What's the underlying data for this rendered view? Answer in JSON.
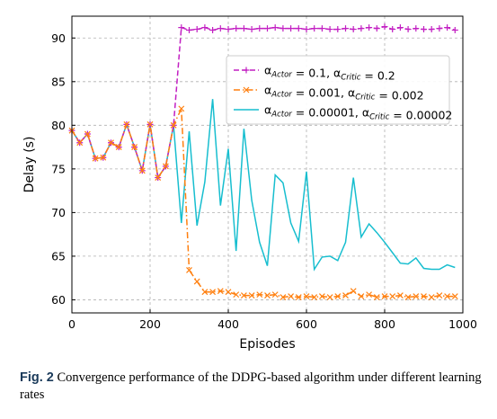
{
  "chart_data": {
    "type": "line",
    "xlabel": "Episodes",
    "ylabel": "Delay (s)",
    "xlim": [
      0,
      1000
    ],
    "ylim": [
      58.5,
      92.5
    ],
    "xticks": [
      0,
      200,
      400,
      600,
      800,
      1000
    ],
    "yticks": [
      60,
      65,
      70,
      75,
      80,
      85,
      90
    ],
    "grid": true,
    "legend_position": "upper-right",
    "series": [
      {
        "key": "s1",
        "color": "#c21fc2",
        "linestyle": "dashed",
        "marker": "plus",
        "legend": {
          "a": "α",
          "sub1": "Actor",
          "mid": " = 0.1, ",
          "sub2": "Critic",
          "end": " = 0.2"
        },
        "x": [
          0,
          20,
          40,
          60,
          80,
          100,
          120,
          140,
          160,
          180,
          200,
          220,
          240,
          260,
          280,
          300,
          320,
          340,
          360,
          380,
          400,
          420,
          440,
          460,
          480,
          500,
          520,
          540,
          560,
          580,
          600,
          620,
          640,
          660,
          680,
          700,
          720,
          740,
          760,
          780,
          800,
          820,
          840,
          860,
          880,
          900,
          920,
          940,
          960,
          980
        ],
        "y": [
          79.4,
          78.0,
          79.0,
          76.2,
          76.3,
          78.0,
          77.5,
          80.1,
          77.5,
          74.8,
          80.1,
          74.0,
          75.3,
          80.0,
          91.2,
          90.9,
          91.0,
          91.2,
          90.9,
          91.1,
          91.0,
          91.1,
          91.1,
          91.0,
          91.1,
          91.1,
          91.2,
          91.1,
          91.1,
          91.1,
          91.0,
          91.1,
          91.1,
          91.0,
          91.0,
          91.1,
          91.0,
          91.1,
          91.2,
          91.1,
          91.3,
          91.0,
          91.2,
          91.0,
          91.1,
          91.0,
          91.0,
          91.1,
          91.2,
          90.9
        ]
      },
      {
        "key": "s2",
        "color": "#ff7f0e",
        "linestyle": "dashdot",
        "marker": "x",
        "legend": {
          "a": "α",
          "sub1": "Actor",
          "mid": " = 0.001, ",
          "sub2": "Critic",
          "end": " = 0.002"
        },
        "x": [
          0,
          20,
          40,
          60,
          80,
          100,
          120,
          140,
          160,
          180,
          200,
          220,
          240,
          260,
          280,
          300,
          320,
          340,
          360,
          380,
          400,
          420,
          440,
          460,
          480,
          500,
          520,
          540,
          560,
          580,
          600,
          620,
          640,
          660,
          680,
          700,
          720,
          740,
          760,
          780,
          800,
          820,
          840,
          860,
          880,
          900,
          920,
          940,
          960,
          980
        ],
        "y": [
          79.4,
          78.0,
          79.0,
          76.2,
          76.3,
          78.0,
          77.5,
          80.1,
          77.5,
          74.8,
          80.1,
          74.0,
          75.3,
          80.0,
          81.9,
          63.4,
          62.1,
          60.9,
          60.9,
          61.0,
          60.9,
          60.6,
          60.5,
          60.5,
          60.6,
          60.5,
          60.6,
          60.3,
          60.4,
          60.3,
          60.4,
          60.3,
          60.4,
          60.3,
          60.4,
          60.5,
          61.0,
          60.4,
          60.6,
          60.3,
          60.4,
          60.4,
          60.5,
          60.3,
          60.4,
          60.4,
          60.3,
          60.5,
          60.4,
          60.4
        ]
      },
      {
        "key": "s3",
        "color": "#17becf",
        "linestyle": "solid",
        "marker": "none",
        "legend": {
          "a": "α",
          "sub1": "Actor",
          "mid": " = 0.00001, ",
          "sub2": "Critic",
          "end": " = 0.00002"
        },
        "x": [
          0,
          20,
          40,
          60,
          80,
          100,
          120,
          140,
          160,
          180,
          200,
          220,
          240,
          260,
          280,
          300,
          320,
          340,
          360,
          380,
          400,
          420,
          440,
          460,
          480,
          500,
          520,
          540,
          560,
          580,
          600,
          620,
          640,
          660,
          680,
          700,
          720,
          740,
          760,
          780,
          800,
          820,
          840,
          860,
          880,
          900,
          920,
          940,
          960,
          980
        ],
        "y": [
          79.4,
          78.0,
          79.0,
          76.2,
          76.3,
          78.0,
          77.5,
          80.1,
          77.5,
          74.8,
          80.1,
          74.0,
          75.3,
          80.0,
          68.8,
          79.3,
          68.5,
          73.5,
          83.0,
          70.8,
          77.3,
          65.6,
          79.6,
          71.4,
          66.6,
          63.9,
          74.3,
          73.4,
          68.8,
          66.7,
          74.7,
          63.5,
          64.9,
          65.0,
          64.5,
          66.6,
          74.0,
          67.2,
          68.7,
          67.7,
          66.6,
          65.4,
          64.2,
          64.1,
          64.8,
          63.6,
          63.5,
          63.5,
          64.0,
          63.7
        ]
      }
    ]
  },
  "caption": {
    "label": "Fig. 2",
    "text": "  Convergence performance of the DDPG-based algorithm under different learning rates"
  }
}
